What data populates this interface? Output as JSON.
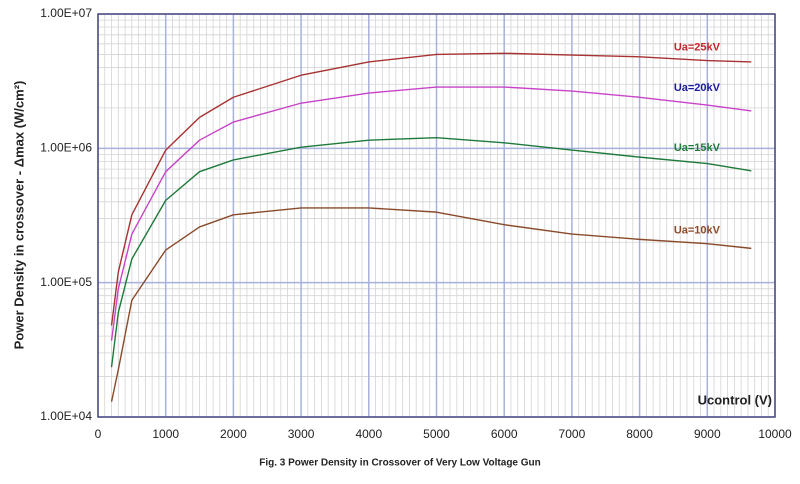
{
  "chart_data": {
    "type": "line",
    "caption": "Fig. 3   Power Density in Crossover of Very Low Voltage Gun",
    "y_label": "Power Density in crossover - Δmax (W/cm²)",
    "x_label": "Ucontrol (V)",
    "x": [
      200,
      300,
      500,
      1000,
      1500,
      2000,
      3000,
      4000,
      5000,
      6000,
      7000,
      8000,
      9000,
      9650
    ],
    "series": [
      {
        "name": "Ua=25kV",
        "color": "#a83232",
        "label_color": "#c0262a",
        "values": [
          48000,
          120000,
          320000,
          970000,
          1700000,
          2400000,
          3500000,
          4400000,
          5000000,
          5100000,
          4950000,
          4800000,
          4500000,
          4400000
        ]
      },
      {
        "name": "Ua=20kV",
        "color": "#c844c8",
        "label_color": "#1a1a9a",
        "values": [
          37000,
          90000,
          230000,
          670000,
          1150000,
          1570000,
          2170000,
          2580000,
          2860000,
          2860000,
          2670000,
          2400000,
          2100000,
          1900000
        ]
      },
      {
        "name": "Ua=15kV",
        "color": "#1e7a3a",
        "label_color": "#1e7a3a",
        "values": [
          23500,
          60000,
          150000,
          410000,
          670000,
          820000,
          1020000,
          1150000,
          1200000,
          1100000,
          970000,
          860000,
          770000,
          680000
        ]
      },
      {
        "name": "Ua=10kV",
        "color": "#8a4a2a",
        "label_color": "#8a4a2a",
        "values": [
          13000,
          22500,
          74000,
          175000,
          260000,
          320000,
          360000,
          360000,
          335000,
          270000,
          230000,
          210000,
          195000,
          180000
        ]
      }
    ],
    "xlim": [
      0,
      10000
    ],
    "xticks": [
      0,
      1000,
      2000,
      3000,
      4000,
      5000,
      6000,
      7000,
      8000,
      9000,
      10000
    ],
    "ylim": [
      10000,
      10000000
    ],
    "yticks": [
      {
        "value": 10000,
        "label": "1.00E+04"
      },
      {
        "value": 100000,
        "label": "1.00E+05"
      },
      {
        "value": 1000000,
        "label": "1.00E+06"
      },
      {
        "value": 10000000,
        "label": "1.00E+07"
      }
    ],
    "log_y": true,
    "grid": true
  }
}
